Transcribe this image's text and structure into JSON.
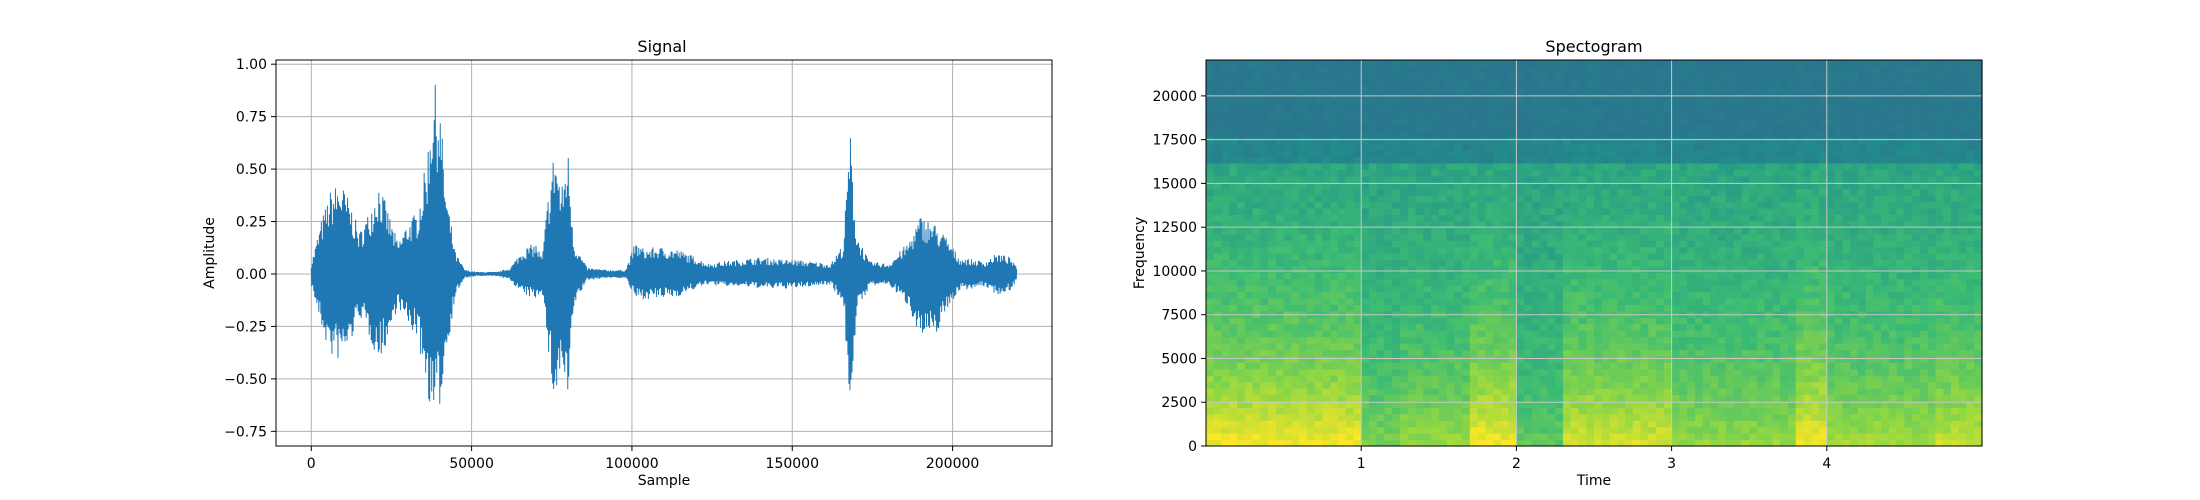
{
  "figure": {
    "left_title": "Signal",
    "right_title": "Spectogram"
  },
  "chart_data": [
    {
      "type": "line",
      "title": "Signal",
      "xlabel": "Sample",
      "ylabel": "Amplitude",
      "xlim": [
        -11000,
        231000
      ],
      "ylim": [
        -0.82,
        1.02
      ],
      "x_ticks": [
        0,
        50000,
        100000,
        150000,
        200000
      ],
      "x_tick_labels": [
        "0",
        "50000",
        "100000",
        "150000",
        "200000"
      ],
      "y_ticks": [
        -0.75,
        -0.5,
        -0.25,
        0.0,
        0.25,
        0.5,
        0.75,
        1.0
      ],
      "y_tick_labels": [
        "−0.75",
        "−0.50",
        "−0.25",
        "0.00",
        "0.25",
        "0.50",
        "0.75",
        "1.00"
      ],
      "grid": true,
      "color": "#1f77b4",
      "series": [
        {
          "sample": [
            0,
            3000,
            6000,
            9000,
            12000,
            15000,
            18000,
            21000,
            24000,
            27000,
            30000,
            33000,
            36000,
            38000,
            40000,
            42000,
            45000,
            48000,
            52000,
            58000,
            62000,
            66000,
            70000,
            72000,
            74000,
            76000,
            78000,
            80000,
            82000,
            86000,
            92000,
            98000,
            101000,
            104000,
            108000,
            114000,
            120000,
            124000,
            128000,
            134000,
            140000,
            146000,
            150000,
            156000,
            162000,
            166000,
            168000,
            170000,
            174000,
            180000,
            186000,
            190000,
            194000,
            198000,
            202000,
            206000,
            210000,
            214000,
            218000,
            220000
          ],
          "upper": [
            0.05,
            0.25,
            0.4,
            0.45,
            0.35,
            0.2,
            0.3,
            0.45,
            0.3,
            0.15,
            0.25,
            0.3,
            0.55,
            0.93,
            0.85,
            0.4,
            0.1,
            0.02,
            0.01,
            0.01,
            0.03,
            0.12,
            0.15,
            0.08,
            0.4,
            0.63,
            0.4,
            0.62,
            0.15,
            0.03,
            0.02,
            0.02,
            0.15,
            0.12,
            0.13,
            0.12,
            0.08,
            0.05,
            0.06,
            0.07,
            0.08,
            0.07,
            0.07,
            0.06,
            0.05,
            0.15,
            0.7,
            0.2,
            0.06,
            0.05,
            0.15,
            0.28,
            0.25,
            0.18,
            0.08,
            0.07,
            0.06,
            0.1,
            0.08,
            0.03
          ],
          "lower": [
            -0.05,
            -0.25,
            -0.4,
            -0.42,
            -0.35,
            -0.2,
            -0.3,
            -0.42,
            -0.32,
            -0.15,
            -0.25,
            -0.3,
            -0.55,
            -0.72,
            -0.65,
            -0.4,
            -0.1,
            -0.02,
            -0.01,
            -0.01,
            -0.03,
            -0.1,
            -0.12,
            -0.08,
            -0.4,
            -0.65,
            -0.45,
            -0.66,
            -0.15,
            -0.03,
            -0.02,
            -0.02,
            -0.12,
            -0.12,
            -0.12,
            -0.11,
            -0.07,
            -0.05,
            -0.06,
            -0.06,
            -0.07,
            -0.07,
            -0.07,
            -0.06,
            -0.05,
            -0.15,
            -0.65,
            -0.2,
            -0.06,
            -0.05,
            -0.15,
            -0.3,
            -0.32,
            -0.18,
            -0.08,
            -0.07,
            -0.06,
            -0.1,
            -0.08,
            -0.03
          ]
        }
      ]
    },
    {
      "type": "heatmap",
      "title": "Spectogram",
      "xlabel": "Time",
      "ylabel": "Frequency",
      "xlim": [
        0.0,
        5.0
      ],
      "ylim": [
        0,
        22050
      ],
      "x_ticks": [
        1,
        2,
        3,
        4
      ],
      "x_tick_labels": [
        "1",
        "2",
        "3",
        "4"
      ],
      "y_ticks": [
        0,
        2500,
        5000,
        7500,
        10000,
        12500,
        15000,
        17500,
        20000
      ],
      "y_tick_labels": [
        "0",
        "2500",
        "5000",
        "7500",
        "10000",
        "12500",
        "15000",
        "17500",
        "20000"
      ],
      "grid": true,
      "colormap": [
        "#2d6e8e",
        "#21918c",
        "#3bbb75",
        "#8fd744",
        "#fde725"
      ],
      "time_segments": [
        {
          "start": 0.0,
          "end": 1.0,
          "level": 0.85
        },
        {
          "start": 1.0,
          "end": 1.25,
          "level": 0.45
        },
        {
          "start": 1.25,
          "end": 1.7,
          "level": 0.55
        },
        {
          "start": 1.7,
          "end": 2.0,
          "level": 0.85
        },
        {
          "start": 2.0,
          "end": 2.3,
          "level": 0.35
        },
        {
          "start": 2.3,
          "end": 3.0,
          "level": 0.75
        },
        {
          "start": 3.0,
          "end": 3.8,
          "level": 0.55
        },
        {
          "start": 3.8,
          "end": 4.0,
          "level": 0.85
        },
        {
          "start": 4.0,
          "end": 4.7,
          "level": 0.6
        },
        {
          "start": 4.7,
          "end": 5.0,
          "level": 0.7
        }
      ],
      "upper_band_cutoff": 17500,
      "mid_band_cutoff": 16000
    }
  ]
}
